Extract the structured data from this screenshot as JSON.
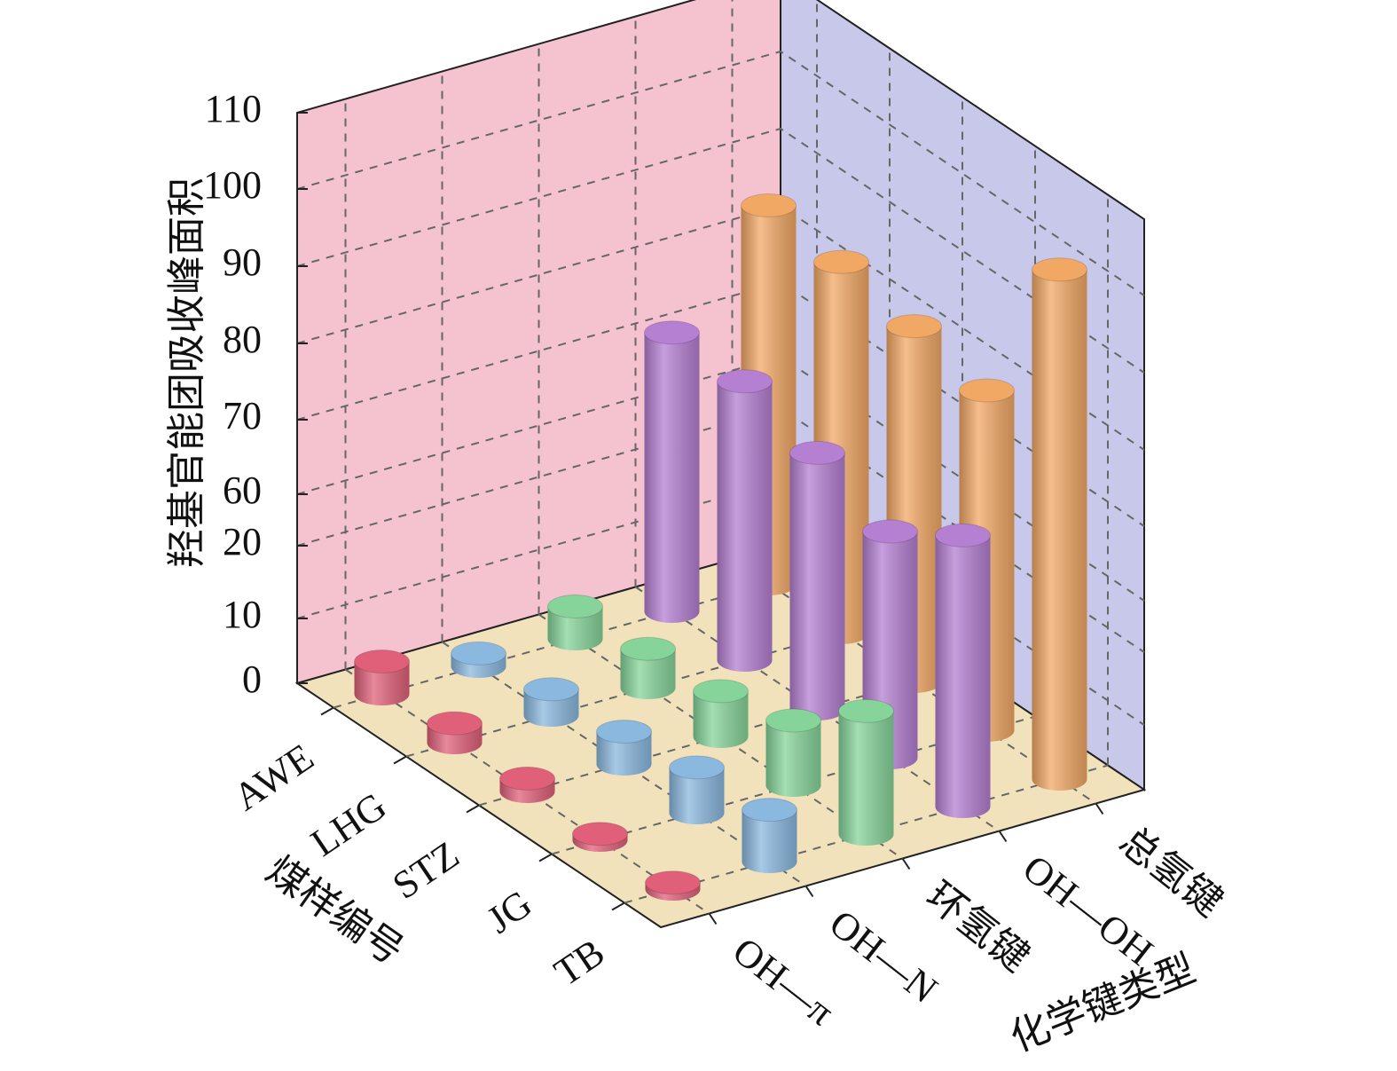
{
  "chart_data": {
    "type": "bar3d",
    "ylabel": "羟基官能团吸收峰面积",
    "category_label": "煤样编号",
    "xlabel": "化学键类型",
    "categories": [
      "AWE",
      "LHG",
      "STZ",
      "JG",
      "TB"
    ],
    "series": [
      {
        "name": "OH—π",
        "color": "#e0607a",
        "values": [
          5,
          3,
          2,
          1,
          1
        ]
      },
      {
        "name": "OH—N",
        "color": "#8ab8df",
        "values": [
          2,
          4,
          5,
          7,
          8
        ]
      },
      {
        "name": "环氢键",
        "color": "#86d49a",
        "values": [
          5,
          6,
          7,
          10,
          18
        ]
      },
      {
        "name": "OH—OH",
        "color": "#b57fd2",
        "values": [
          72,
          72,
          69,
          65,
          71
        ]
      },
      {
        "name": "总氢键",
        "color": "#f2a865",
        "values": [
          85,
          84,
          82,
          80,
          102
        ]
      }
    ],
    "ylim": [
      0,
      110
    ],
    "yticks": [
      0,
      10,
      20,
      60,
      70,
      80,
      90,
      100,
      110
    ],
    "grid": true
  }
}
